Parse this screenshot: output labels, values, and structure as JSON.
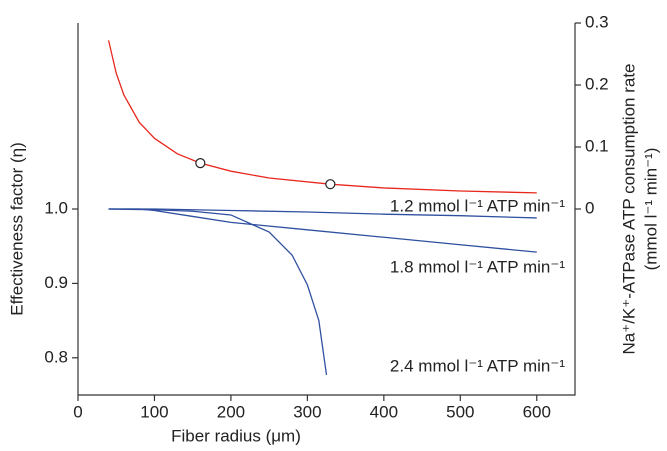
{
  "chart_data": {
    "type": "line",
    "xlabel": "Fiber radius (μm)",
    "ylabel": "Effectiveness factor (η)",
    "y2label": [
      "Na⁺/K⁺-ATPase ATP consumption rate",
      "(mmol l⁻¹ min⁻¹)"
    ],
    "xlim": [
      0,
      650
    ],
    "xticks": [
      0,
      100,
      200,
      300,
      400,
      500,
      600
    ],
    "ylim": [
      0.75,
      1.25
    ],
    "yticks": [
      {
        "value": 0.8,
        "label": "0.8"
      },
      {
        "value": 0.9,
        "label": "0.9"
      },
      {
        "value": 1.0,
        "label": "1.0"
      }
    ],
    "y2lim": [
      -0.3,
      0.3
    ],
    "y2ticks": [
      0,
      0.1,
      0.2,
      0.3
    ],
    "ycolor": "#2f4fa0",
    "y2color": "#e8281e",
    "series": [
      {
        "name": "1.2 mmol l⁻¹ ATP min⁻¹",
        "color": "#2f4fa0",
        "x": [
          40,
          100,
          200,
          300,
          400,
          500,
          600
        ],
        "values": [
          1.0,
          1.0,
          0.998,
          0.996,
          0.993,
          0.991,
          0.988
        ]
      },
      {
        "name": "1.8 mmol l⁻¹ ATP min⁻¹",
        "color": "#2f4fa0",
        "x": [
          40,
          80,
          100,
          150,
          200,
          300,
          400,
          500,
          600
        ],
        "values": [
          1.0,
          1.0,
          0.998,
          0.99,
          0.982,
          0.972,
          0.962,
          0.952,
          0.942
        ]
      },
      {
        "name": "2.4 mmol l⁻¹ ATP min⁻¹",
        "color": "#2f4fa0",
        "x": [
          40,
          100,
          150,
          200,
          250,
          280,
          300,
          315,
          325
        ],
        "values": [
          1.0,
          0.999,
          0.997,
          0.992,
          0.969,
          0.938,
          0.898,
          0.85,
          0.777
        ]
      },
      {
        "name": "ATP consumption rate",
        "color": "#e8281e",
        "axis": "y2",
        "x": [
          40,
          50,
          60,
          80,
          100,
          130,
          160,
          200,
          250,
          330,
          400,
          500,
          600
        ],
        "values": [
          0.272,
          0.219,
          0.184,
          0.14,
          0.114,
          0.089,
          0.074,
          0.061,
          0.05,
          0.04,
          0.034,
          0.029,
          0.026
        ]
      }
    ],
    "markers": {
      "x": [
        160,
        330
      ],
      "values": [
        0.074,
        0.04
      ]
    }
  }
}
